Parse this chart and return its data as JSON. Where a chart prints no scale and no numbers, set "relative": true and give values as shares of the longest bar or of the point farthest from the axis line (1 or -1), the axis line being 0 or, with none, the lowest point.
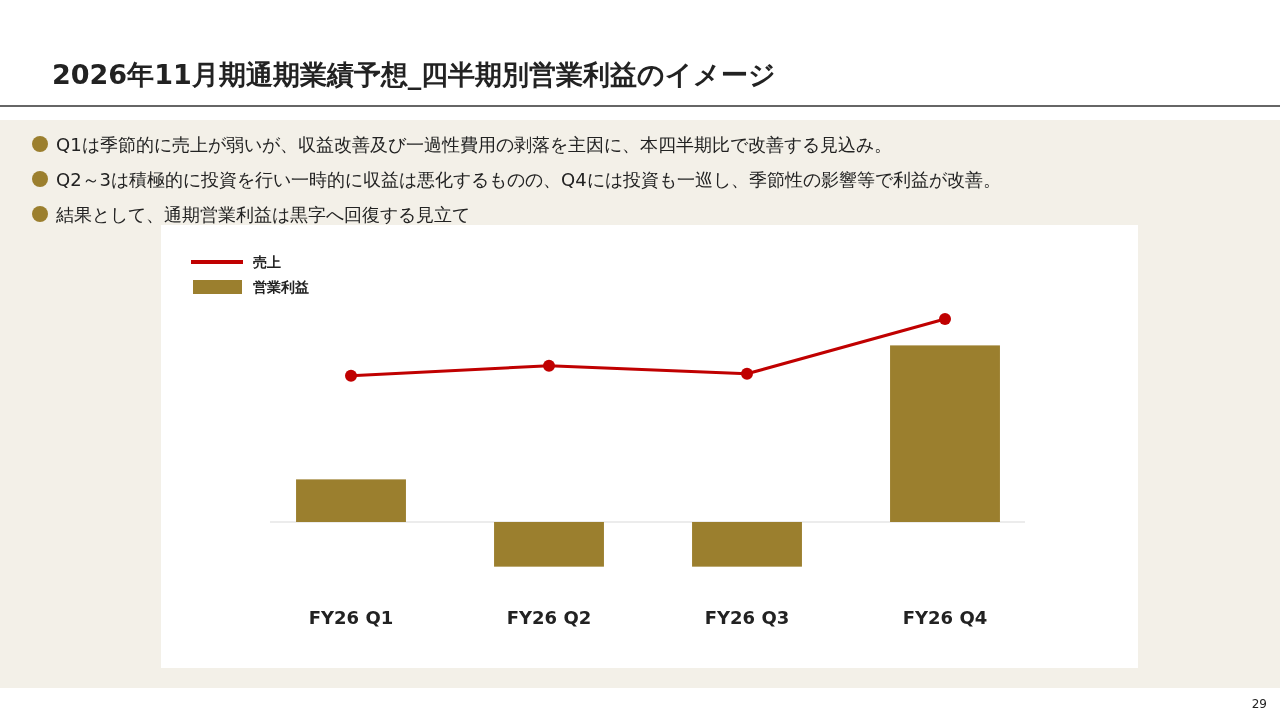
{
  "chart_data": {
    "type": "bar",
    "title": "2026年11月期通期業績予想_四半期別営業利益のイメージ",
    "annotations": [
      "Q1は季節的に売上が弱いが、収益改善及び一過性費用の剥落を主因に、本四半期比で改善する見込み。",
      "Q2～3は積極的に投資を行い一時的に収益は悪化するものの、Q4には投資も一巡し、季節性の影響等で利益が改善。",
      "結果として、通期営業利益は黒字へ回復する見立て",
      "29"
    ],
    "categories": [
      "FY26 Q1",
      "FY26 Q2",
      "FY26 Q3",
      "FY26 Q4"
    ],
    "relative": true,
    "legend": "top left",
    "marker": "circle",
    "series": [
      {
        "type": "line",
        "name": "売上",
        "color": "#c00000",
        "values": [
          0.72,
          0.77,
          0.73,
          1
        ]
      },
      {
        "name": "営業利益",
        "color": "#9b7f2e",
        "values": [
          0.21,
          -0.22,
          -0.22,
          0.87
        ]
      }
    ]
  }
}
